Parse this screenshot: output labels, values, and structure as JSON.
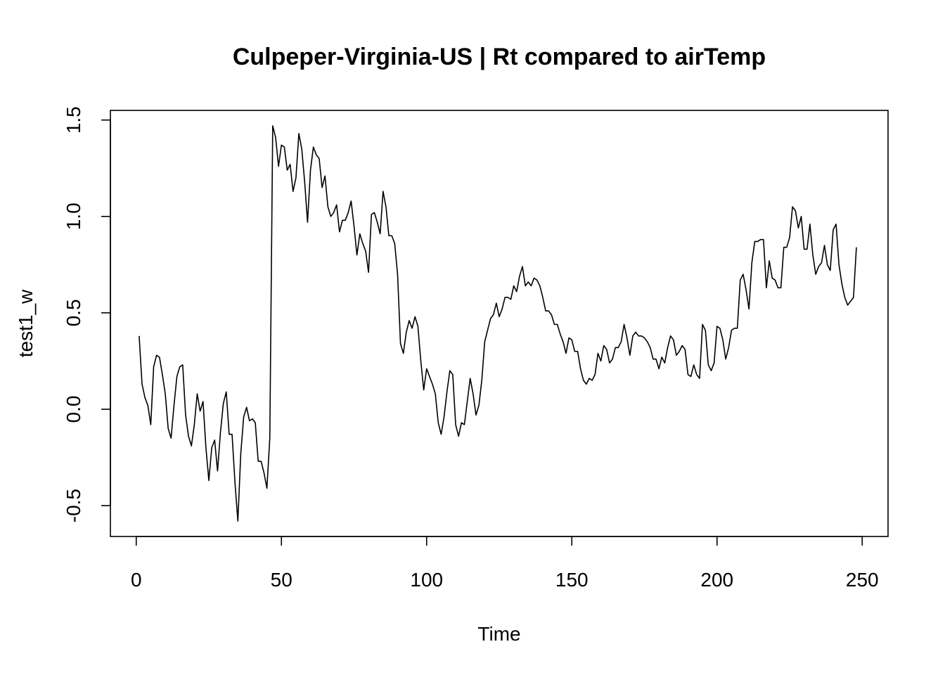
{
  "chart_data": {
    "type": "line",
    "title": "Culpeper-Virginia-US | Rt compared to airTemp",
    "xlabel": "Time",
    "ylabel": "test1_w",
    "xlim": [
      -8.9,
      258.9
    ],
    "ylim": [
      -0.66,
      1.55
    ],
    "xticks": [
      0,
      50,
      100,
      150,
      200,
      250
    ],
    "yticks": [
      -0.5,
      0.0,
      0.5,
      1.0,
      1.5
    ],
    "xtick_labels": [
      "0",
      "50",
      "100",
      "150",
      "200",
      "250"
    ],
    "ytick_labels": [
      "-0.5",
      "0.0",
      "0.5",
      "1.0",
      "1.5"
    ],
    "grid": false,
    "series": [
      {
        "x": [
          1,
          2,
          3,
          4,
          5,
          6,
          7,
          8,
          9,
          10,
          11,
          12,
          13,
          14,
          15,
          16,
          17,
          18,
          19,
          20,
          21,
          22,
          23,
          24,
          25,
          26,
          27,
          28,
          29,
          30,
          31,
          32,
          33,
          34,
          35,
          36,
          37,
          38,
          39,
          40,
          41,
          42,
          43,
          44,
          45,
          46,
          47,
          48,
          49,
          50,
          51,
          52,
          53,
          54,
          55,
          56,
          57,
          58,
          59,
          60,
          61,
          62,
          63,
          64,
          65,
          66,
          67,
          68,
          69,
          70,
          71,
          72,
          73,
          74,
          75,
          76,
          77,
          78,
          79,
          80,
          81,
          82,
          83,
          84,
          85,
          86,
          87,
          88,
          89,
          90,
          91,
          92,
          93,
          94,
          95,
          96,
          97,
          98,
          99,
          100,
          101,
          102,
          103,
          104,
          105,
          106,
          107,
          108,
          109,
          110,
          111,
          112,
          113,
          114,
          115,
          116,
          117,
          118,
          119,
          120,
          121,
          122,
          123,
          124,
          125,
          126,
          127,
          128,
          129,
          130,
          131,
          132,
          133,
          134,
          135,
          136,
          137,
          138,
          139,
          140,
          141,
          142,
          143,
          144,
          145,
          146,
          147,
          148,
          149,
          150,
          151,
          152,
          153,
          154,
          155,
          156,
          157,
          158,
          159,
          160,
          161,
          162,
          163,
          164,
          165,
          166,
          167,
          168,
          169,
          170,
          171,
          172,
          173,
          174,
          175,
          176,
          177,
          178,
          179,
          180,
          181,
          182,
          183,
          184,
          185,
          186,
          187,
          188,
          189,
          190,
          191,
          192,
          193,
          194,
          195,
          196,
          197,
          198,
          199,
          200,
          201,
          202,
          203,
          204,
          205,
          206,
          207,
          208,
          209,
          210,
          211,
          212,
          213,
          214,
          215,
          216,
          217,
          218,
          219,
          220,
          221,
          222,
          223,
          224,
          225,
          226,
          227,
          228,
          229,
          230,
          231,
          232,
          233,
          234,
          235,
          236,
          237,
          238,
          239,
          240,
          241,
          242,
          243,
          244,
          245,
          246,
          247,
          248
        ],
        "y": [
          0.38,
          0.13,
          0.06,
          0.02,
          -0.08,
          0.22,
          0.28,
          0.27,
          0.18,
          0.08,
          -0.1,
          -0.15,
          0.02,
          0.17,
          0.22,
          0.23,
          -0.03,
          -0.14,
          -0.19,
          -0.08,
          0.08,
          -0.01,
          0.04,
          -0.2,
          -0.37,
          -0.2,
          -0.16,
          -0.32,
          -0.12,
          0.03,
          0.09,
          -0.13,
          -0.13,
          -0.38,
          -0.58,
          -0.23,
          -0.04,
          0.01,
          -0.06,
          -0.05,
          -0.07,
          -0.27,
          -0.27,
          -0.33,
          -0.41,
          -0.15,
          1.47,
          1.41,
          1.26,
          1.37,
          1.36,
          1.24,
          1.27,
          1.13,
          1.2,
          1.43,
          1.35,
          1.18,
          0.97,
          1.24,
          1.36,
          1.32,
          1.3,
          1.15,
          1.21,
          1.05,
          1.0,
          1.02,
          1.06,
          0.92,
          0.98,
          0.98,
          1.02,
          1.08,
          0.95,
          0.8,
          0.91,
          0.86,
          0.82,
          0.71,
          1.01,
          1.02,
          0.97,
          0.91,
          1.13,
          1.05,
          0.9,
          0.9,
          0.86,
          0.7,
          0.34,
          0.29,
          0.4,
          0.46,
          0.42,
          0.48,
          0.43,
          0.25,
          0.1,
          0.21,
          0.17,
          0.13,
          0.08,
          -0.07,
          -0.13,
          -0.04,
          0.09,
          0.2,
          0.18,
          -0.08,
          -0.14,
          -0.07,
          -0.08,
          0.04,
          0.16,
          0.08,
          -0.03,
          0.02,
          0.15,
          0.35,
          0.41,
          0.47,
          0.49,
          0.55,
          0.48,
          0.52,
          0.58,
          0.58,
          0.57,
          0.64,
          0.61,
          0.69,
          0.74,
          0.64,
          0.66,
          0.64,
          0.68,
          0.67,
          0.64,
          0.58,
          0.51,
          0.51,
          0.49,
          0.44,
          0.44,
          0.39,
          0.35,
          0.29,
          0.37,
          0.36,
          0.3,
          0.3,
          0.21,
          0.15,
          0.13,
          0.16,
          0.15,
          0.18,
          0.29,
          0.25,
          0.33,
          0.31,
          0.24,
          0.26,
          0.32,
          0.32,
          0.35,
          0.44,
          0.37,
          0.28,
          0.38,
          0.4,
          0.38,
          0.38,
          0.37,
          0.35,
          0.32,
          0.26,
          0.26,
          0.21,
          0.27,
          0.24,
          0.32,
          0.38,
          0.36,
          0.28,
          0.3,
          0.33,
          0.31,
          0.18,
          0.17,
          0.23,
          0.18,
          0.16,
          0.44,
          0.41,
          0.23,
          0.2,
          0.24,
          0.43,
          0.42,
          0.36,
          0.26,
          0.32,
          0.41,
          0.42,
          0.42,
          0.67,
          0.7,
          0.62,
          0.52,
          0.76,
          0.87,
          0.87,
          0.88,
          0.88,
          0.63,
          0.77,
          0.68,
          0.67,
          0.63,
          0.63,
          0.84,
          0.84,
          0.89,
          1.05,
          1.03,
          0.94,
          1.0,
          0.83,
          0.83,
          0.96,
          0.8,
          0.7,
          0.74,
          0.76,
          0.85,
          0.75,
          0.72,
          0.93,
          0.96,
          0.75,
          0.65,
          0.58,
          0.54,
          0.56,
          0.58,
          0.84
        ]
      }
    ]
  }
}
